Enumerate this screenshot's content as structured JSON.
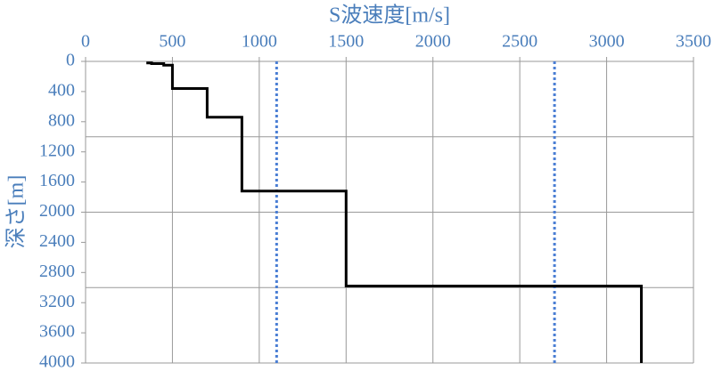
{
  "chart_data": {
    "type": "line",
    "title": "S波速度[m/s]",
    "y_label": "深さ[m]",
    "x": [
      350,
      380,
      380,
      450,
      450,
      500,
      500,
      700,
      700,
      900,
      900,
      1500,
      1500,
      3200,
      3200
    ],
    "values": [
      20,
      20,
      30,
      30,
      50,
      50,
      360,
      360,
      740,
      740,
      1720,
      1720,
      2980,
      2980,
      4000
    ],
    "color": "#000000",
    "xlim": [
      0,
      3500
    ],
    "xticks": [
      0,
      500,
      1000,
      1500,
      2000,
      2500,
      3000,
      3500
    ],
    "ylim": [
      0,
      4000
    ],
    "yticks": [
      0,
      400,
      800,
      1200,
      1600,
      2000,
      2400,
      2800,
      3200,
      3600,
      4000
    ],
    "y_inverted": true,
    "y_gridlines": [
      1000,
      2000,
      3000
    ],
    "reference_lines": [
      {
        "x": 1100,
        "color": "#4a7ed4"
      },
      {
        "x": 2700,
        "color": "#4a7ed4"
      }
    ],
    "label_color": "#4a7ebb"
  }
}
